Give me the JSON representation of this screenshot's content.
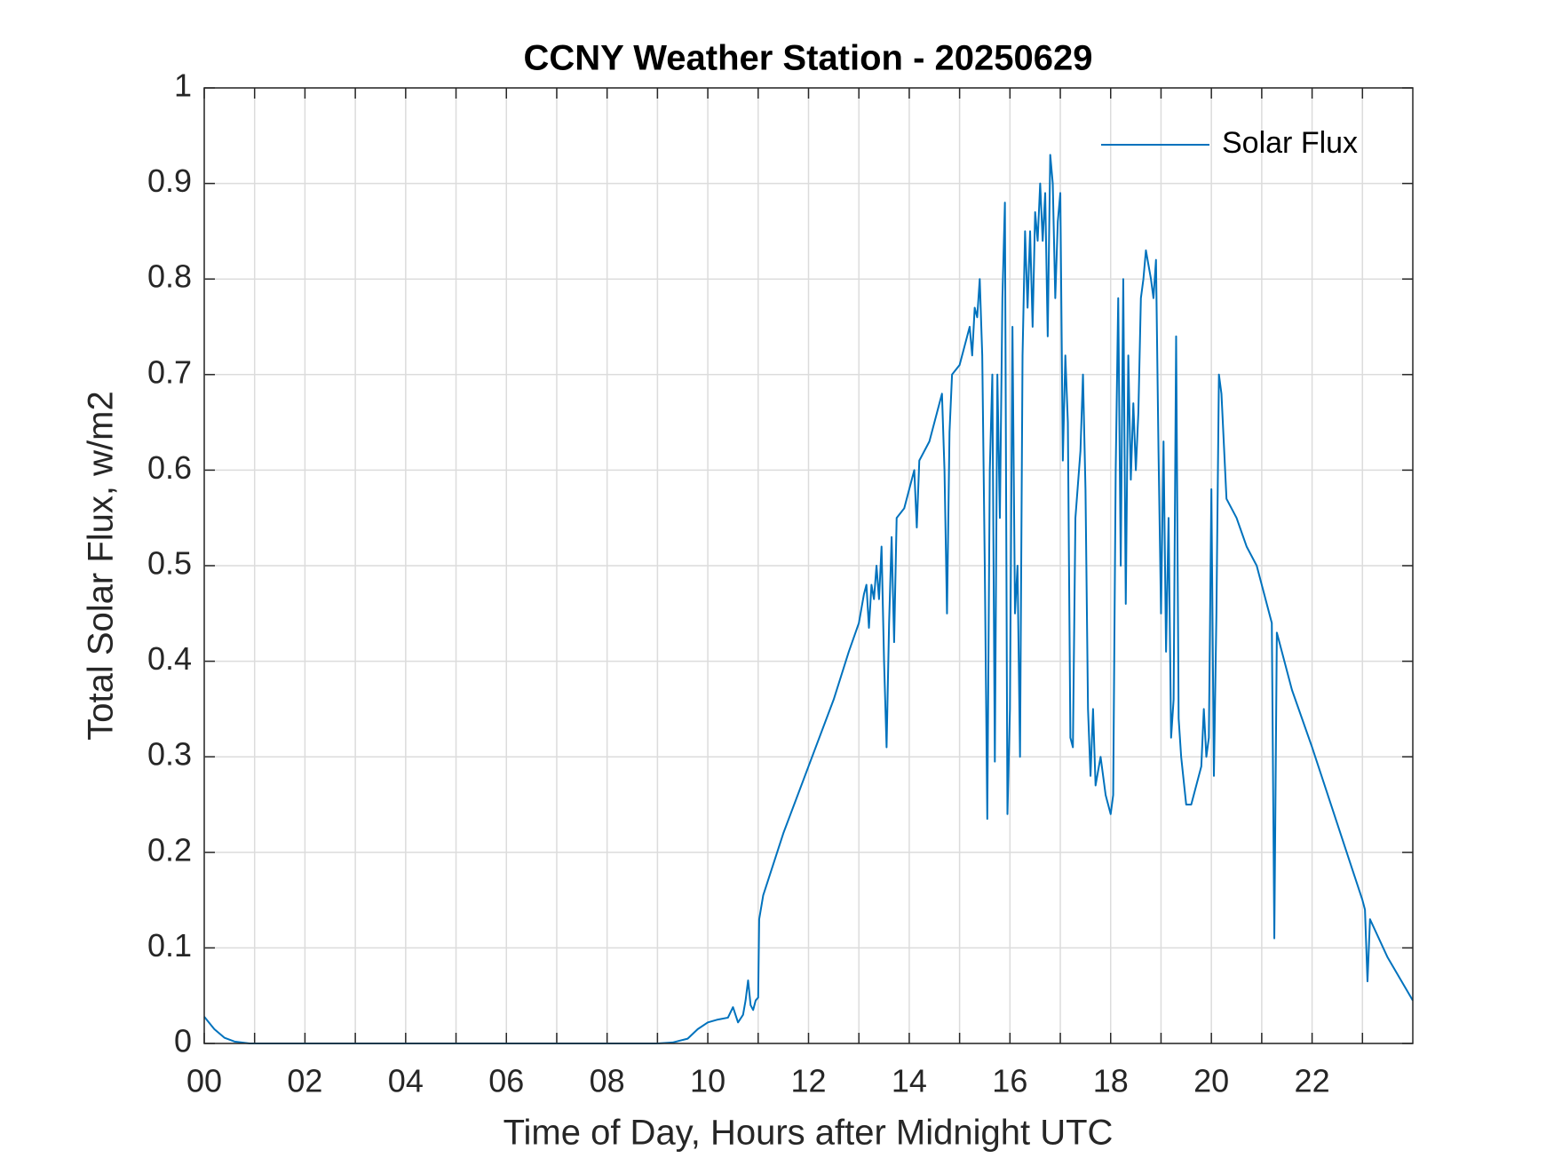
{
  "chart_data": {
    "type": "line",
    "title": "CCNY Weather Station - 20250629",
    "xlabel": "Time of Day, Hours after Midnight UTC",
    "ylabel": "Total Solar Flux, w/m2",
    "xlim": [
      0,
      24
    ],
    "ylim": [
      0,
      1
    ],
    "xticks": [
      {
        "value": 0,
        "label": "00"
      },
      {
        "value": 2,
        "label": "02"
      },
      {
        "value": 4,
        "label": "04"
      },
      {
        "value": 6,
        "label": "06"
      },
      {
        "value": 8,
        "label": "08"
      },
      {
        "value": 10,
        "label": "10"
      },
      {
        "value": 12,
        "label": "12"
      },
      {
        "value": 14,
        "label": "14"
      },
      {
        "value": 16,
        "label": "16"
      },
      {
        "value": 18,
        "label": "18"
      },
      {
        "value": 20,
        "label": "20"
      },
      {
        "value": 22,
        "label": "22"
      }
    ],
    "yticks": [
      0,
      0.1,
      0.2,
      0.3,
      0.4,
      0.5,
      0.6,
      0.7,
      0.8,
      0.9,
      1
    ],
    "grid": true,
    "minor_x_grid": true,
    "legend": "northeast",
    "x": [
      0,
      0.2,
      0.4,
      0.6,
      0.9,
      2,
      4,
      6,
      8,
      9.0,
      9.3,
      9.6,
      9.8,
      10.0,
      10.2,
      10.4,
      10.5,
      10.6,
      10.7,
      10.75,
      10.8,
      10.85,
      10.9,
      10.95,
      11.0,
      11.02,
      11.1,
      11.5,
      12.0,
      12.5,
      12.8,
      13.0,
      13.1,
      13.15,
      13.2,
      13.25,
      13.3,
      13.35,
      13.4,
      13.45,
      13.5,
      13.55,
      13.6,
      13.65,
      13.7,
      13.75,
      13.9,
      14.0,
      14.1,
      14.15,
      14.2,
      14.4,
      14.5,
      14.6,
      14.65,
      14.7,
      14.75,
      14.8,
      14.85,
      15.0,
      15.1,
      15.2,
      15.25,
      15.3,
      15.35,
      15.4,
      15.45,
      15.5,
      15.55,
      15.6,
      15.65,
      15.7,
      15.75,
      15.8,
      15.85,
      15.9,
      15.95,
      16.0,
      16.05,
      16.1,
      16.15,
      16.2,
      16.25,
      16.3,
      16.35,
      16.4,
      16.45,
      16.5,
      16.55,
      16.6,
      16.65,
      16.7,
      16.75,
      16.8,
      16.85,
      16.9,
      16.95,
      17.0,
      17.05,
      17.1,
      17.15,
      17.2,
      17.25,
      17.3,
      17.4,
      17.45,
      17.5,
      17.55,
      17.6,
      17.65,
      17.7,
      17.8,
      17.9,
      18.0,
      18.05,
      18.1,
      18.15,
      18.2,
      18.25,
      18.3,
      18.35,
      18.4,
      18.45,
      18.5,
      18.55,
      18.6,
      18.65,
      18.7,
      18.8,
      18.85,
      18.9,
      18.95,
      19.0,
      19.05,
      19.1,
      19.15,
      19.2,
      19.25,
      19.3,
      19.35,
      19.4,
      19.5,
      19.6,
      19.7,
      19.8,
      19.85,
      19.9,
      19.95,
      20.0,
      20.05,
      20.1,
      20.15,
      20.2,
      20.3,
      20.5,
      20.7,
      20.9,
      21.0,
      21.2,
      21.25,
      21.3,
      21.4,
      21.6,
      22.0,
      22.5,
      23.0,
      23.05,
      23.1,
      23.15,
      23.5,
      24.0
    ],
    "series": [
      {
        "name": "Solar Flux",
        "color": "#0072bd",
        "values": [
          0.028,
          0.015,
          0.006,
          0.002,
          0,
          0,
          0,
          0,
          0,
          0,
          0.001,
          0.005,
          0.015,
          0.022,
          0.025,
          0.027,
          0.038,
          0.022,
          0.03,
          0.045,
          0.066,
          0.04,
          0.035,
          0.045,
          0.048,
          0.13,
          0.155,
          0.22,
          0.29,
          0.36,
          0.41,
          0.44,
          0.47,
          0.48,
          0.435,
          0.48,
          0.465,
          0.5,
          0.465,
          0.52,
          0.4,
          0.31,
          0.44,
          0.53,
          0.42,
          0.55,
          0.56,
          0.58,
          0.6,
          0.54,
          0.61,
          0.63,
          0.65,
          0.67,
          0.68,
          0.6,
          0.45,
          0.64,
          0.7,
          0.71,
          0.73,
          0.75,
          0.72,
          0.77,
          0.76,
          0.8,
          0.72,
          0.5,
          0.235,
          0.6,
          0.7,
          0.295,
          0.7,
          0.55,
          0.78,
          0.88,
          0.24,
          0.35,
          0.75,
          0.45,
          0.5,
          0.3,
          0.72,
          0.85,
          0.77,
          0.85,
          0.75,
          0.87,
          0.84,
          0.9,
          0.84,
          0.89,
          0.74,
          0.93,
          0.9,
          0.78,
          0.86,
          0.89,
          0.61,
          0.72,
          0.65,
          0.32,
          0.31,
          0.55,
          0.62,
          0.7,
          0.58,
          0.35,
          0.28,
          0.35,
          0.27,
          0.3,
          0.26,
          0.24,
          0.26,
          0.6,
          0.78,
          0.5,
          0.8,
          0.46,
          0.72,
          0.59,
          0.67,
          0.6,
          0.66,
          0.78,
          0.8,
          0.83,
          0.8,
          0.78,
          0.82,
          0.62,
          0.45,
          0.63,
          0.41,
          0.55,
          0.32,
          0.36,
          0.74,
          0.34,
          0.3,
          0.25,
          0.25,
          0.27,
          0.29,
          0.35,
          0.3,
          0.32,
          0.58,
          0.28,
          0.45,
          0.7,
          0.68,
          0.57,
          0.55,
          0.52,
          0.5,
          0.48,
          0.44,
          0.11,
          0.43,
          0.41,
          0.37,
          0.31,
          0.23,
          0.15,
          0.14,
          0.065,
          0.13,
          0.09,
          0.045
        ]
      }
    ]
  }
}
